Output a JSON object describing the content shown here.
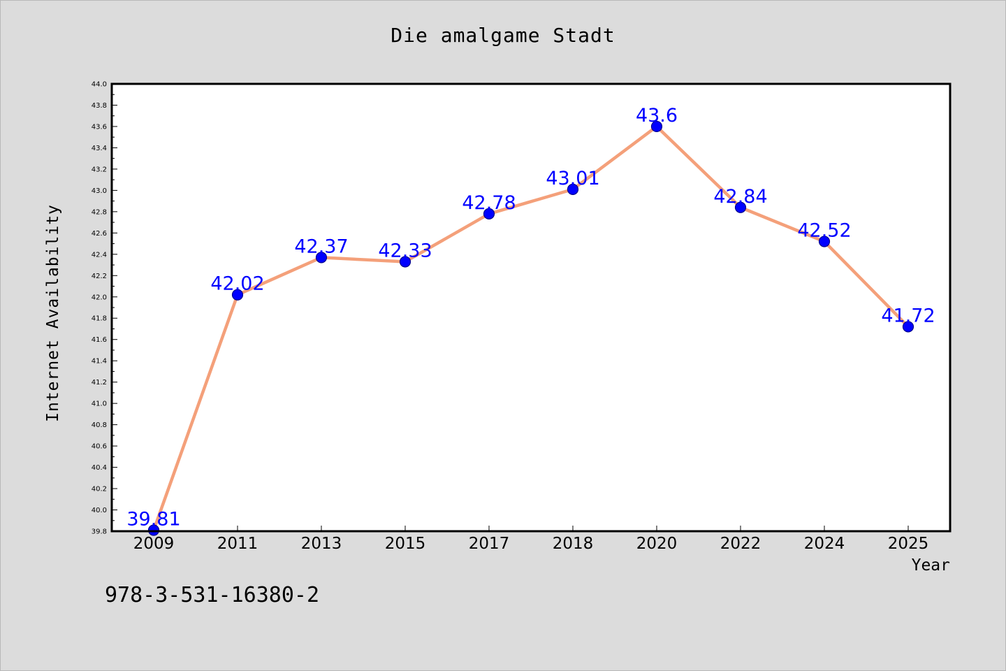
{
  "chart_data": {
    "type": "line",
    "title": "Die amalgame Stadt",
    "xlabel": "Year",
    "ylabel": "Internet Availability",
    "categories": [
      "2009",
      "2011",
      "2013",
      "2015",
      "2017",
      "2018",
      "2020",
      "2022",
      "2024",
      "2025"
    ],
    "values": [
      39.81,
      42.02,
      42.37,
      42.33,
      42.78,
      43.01,
      43.6,
      42.84,
      42.52,
      41.72
    ],
    "data_labels": [
      "39.81",
      "42.02",
      "42.37",
      "42.33",
      "42.78",
      "43.01",
      "43.6",
      "42.84",
      "42.52",
      "41.72"
    ],
    "ylim": [
      39.8,
      44.0
    ],
    "y_ticks": [
      "39.8",
      "40.0",
      "40.2",
      "40.4",
      "40.6",
      "40.8",
      "41.0",
      "41.2",
      "41.4",
      "41.6",
      "41.8",
      "42.0",
      "42.2",
      "42.4",
      "42.6",
      "42.8",
      "43.0",
      "43.2",
      "43.4",
      "43.6",
      "43.8",
      "44.0"
    ],
    "grid": false,
    "legend": "none",
    "colors": {
      "line": "#f4a07a",
      "marker": "#0000ff",
      "marker_edge": "#00008b",
      "data_label": "#0000ff",
      "plot_background": "#ffffff",
      "figure_background": "#dcdcdc"
    }
  },
  "footer": {
    "isbn": "978-3-531-16380-2"
  }
}
